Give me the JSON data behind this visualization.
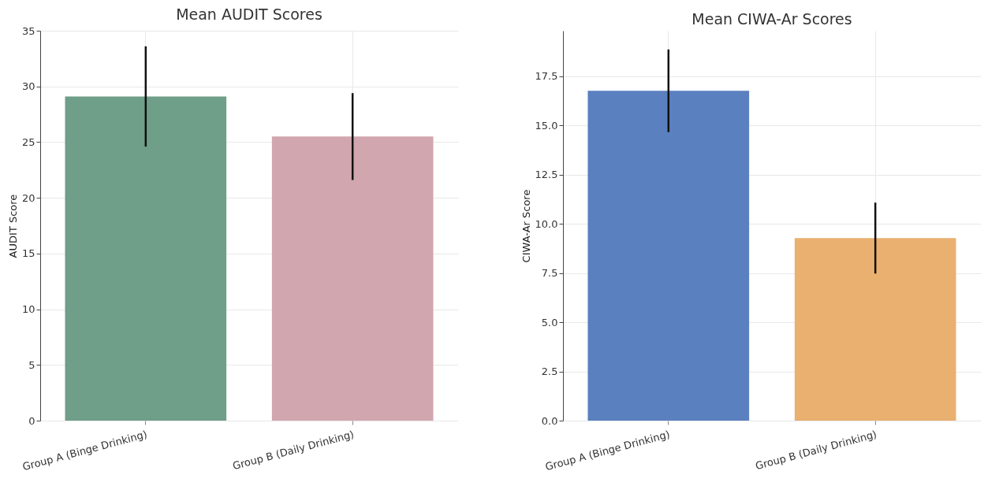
{
  "chart_data": [
    {
      "type": "bar",
      "title": "Mean AUDIT Scores",
      "ylabel": "AUDIT Score",
      "categories": [
        "Group A (Binge Drinking)",
        "Group B (Daily Drinking)"
      ],
      "values": [
        29.1,
        25.5
      ],
      "errors": [
        4.5,
        3.9
      ],
      "colors": [
        "#6f9e89",
        "#d1a6ae"
      ],
      "ylim": [
        0,
        35
      ],
      "yticks": [
        0,
        5,
        10,
        15,
        20,
        25,
        30,
        35
      ],
      "grid": true
    },
    {
      "type": "bar",
      "title": "Mean CIWA-Ar Scores",
      "ylabel": "CIWA-Ar Score",
      "categories": [
        "Group A (Binge Drinking)",
        "Group B (Daily Drinking)"
      ],
      "values": [
        16.75,
        9.27
      ],
      "errors": [
        2.1,
        1.8
      ],
      "colors": [
        "#5a80c0",
        "#e9b06f"
      ],
      "ylim": [
        0,
        19.8
      ],
      "yticks": [
        {
          "value": 0,
          "label": "0.0"
        },
        {
          "value": 2.5,
          "label": "2.5"
        },
        {
          "value": 5,
          "label": "5.0"
        },
        {
          "value": 7.5,
          "label": "7.5"
        },
        {
          "value": 10,
          "label": "10.0"
        },
        {
          "value": 12.5,
          "label": "12.5"
        },
        {
          "value": 15,
          "label": "15.0"
        },
        {
          "value": 17.5,
          "label": "17.5"
        }
      ],
      "grid": true
    }
  ]
}
